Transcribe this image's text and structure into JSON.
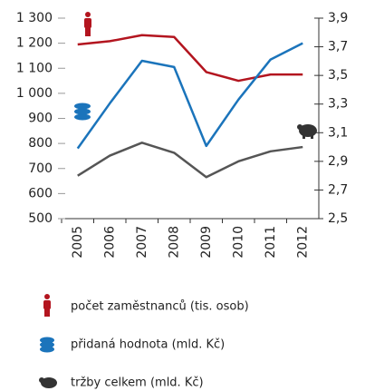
{
  "chart_data": {
    "type": "line",
    "categories": [
      "2005",
      "2006",
      "2007",
      "2008",
      "2009",
      "2010",
      "2011",
      "2012"
    ],
    "series": [
      {
        "name": "počet zaměstnanců (tis. osob)",
        "color": "#b3151f",
        "axis": "y",
        "values": [
          1195,
          1208,
          1232,
          1225,
          1085,
          1050,
          1075,
          1075
        ]
      },
      {
        "name": "přidaná hodnota (mld. Kč)",
        "color": "#1b74bb",
        "axis": "y",
        "values": [
          780,
          960,
          1130,
          1105,
          790,
          975,
          1135,
          1200
        ]
      },
      {
        "name": "tržby celkem (mld. Kč)",
        "color": "#555555",
        "axis": "y2",
        "values": [
          2.8,
          2.94,
          3.03,
          2.96,
          2.79,
          2.9,
          2.97,
          3.0
        ]
      }
    ],
    "ylim": [
      500,
      1300
    ],
    "yticks": [
      {
        "value": 1300,
        "label": "1 300"
      },
      {
        "value": 1200,
        "label": "1 200"
      },
      {
        "value": 1100,
        "label": "1 100"
      },
      {
        "value": 1000,
        "label": "1 000"
      },
      900,
      800,
      700,
      600,
      500
    ],
    "y2lim": [
      2.5,
      3.9
    ],
    "y2ticks": [
      {
        "value": 3.9,
        "label": "3,9"
      },
      {
        "value": 3.7,
        "label": "3,7"
      },
      {
        "value": 3.5,
        "label": "3,5"
      },
      {
        "value": 3.3,
        "label": "3,3"
      },
      {
        "value": 3.1,
        "label": "3,1"
      },
      {
        "value": 2.9,
        "label": "2,9"
      },
      {
        "value": 2.7,
        "label": "2,7"
      },
      {
        "value": 2.5,
        "label": "2,5"
      }
    ],
    "grid": false
  }
}
